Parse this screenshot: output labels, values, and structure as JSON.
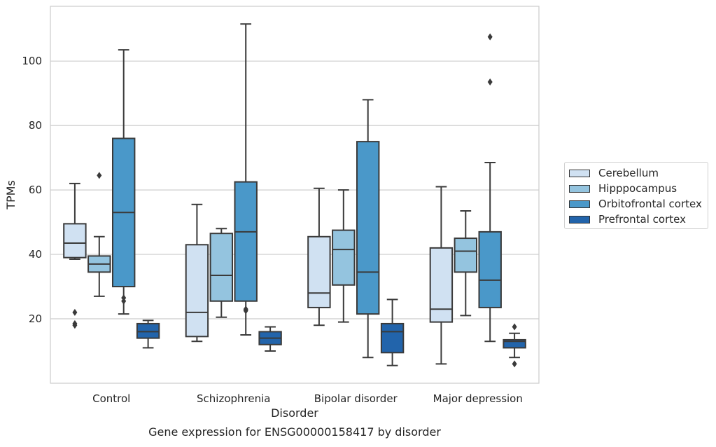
{
  "chart_data": {
    "type": "boxplot",
    "title": "Gene expression for ENSG00000158417 by disorder",
    "xlabel": "Disorder",
    "ylabel": "TPMs",
    "ylim": [
      0,
      117
    ],
    "yticks": [
      20,
      40,
      60,
      80,
      100
    ],
    "grid": "horizontal",
    "legend_position": "right",
    "categories": [
      "Control",
      "Schizophrenia",
      "Bipolar disorder",
      "Major depression"
    ],
    "series": [
      {
        "name": "Cerebellum",
        "color": "#d0e1f2",
        "boxes": [
          {
            "whisker_low": 38.5,
            "q1": 39,
            "median": 43.5,
            "q3": 49.5,
            "whisker_high": 62,
            "outliers": [
              22,
              18.5,
              18
            ]
          },
          {
            "whisker_low": 13,
            "q1": 14.5,
            "median": 22,
            "q3": 43,
            "whisker_high": 55.5,
            "outliers": []
          },
          {
            "whisker_low": 18,
            "q1": 23.5,
            "median": 28,
            "q3": 45.5,
            "whisker_high": 60.5,
            "outliers": []
          },
          {
            "whisker_low": 6,
            "q1": 19,
            "median": 23,
            "q3": 42,
            "whisker_high": 61,
            "outliers": []
          }
        ]
      },
      {
        "name": "Hipppocampus",
        "color": "#94c4df",
        "boxes": [
          {
            "whisker_low": 27,
            "q1": 34.5,
            "median": 37,
            "q3": 39.5,
            "whisker_high": 45.5,
            "outliers": [
              64.5
            ]
          },
          {
            "whisker_low": 20.5,
            "q1": 25.5,
            "median": 33.5,
            "q3": 46.5,
            "whisker_high": 48,
            "outliers": []
          },
          {
            "whisker_low": 19,
            "q1": 30.5,
            "median": 41.5,
            "q3": 47.5,
            "whisker_high": 60,
            "outliers": []
          },
          {
            "whisker_low": 21,
            "q1": 34.5,
            "median": 41,
            "q3": 45,
            "whisker_high": 53.5,
            "outliers": []
          }
        ]
      },
      {
        "name": "Orbitofrontal cortex",
        "color": "#4a98c9",
        "boxes": [
          {
            "whisker_low": 21.5,
            "q1": 30,
            "median": 53,
            "q3": 76,
            "whisker_high": 103.5,
            "outliers": [
              26.5,
              25.5
            ]
          },
          {
            "whisker_low": 15,
            "q1": 25.5,
            "median": 47,
            "q3": 62.5,
            "whisker_high": 111.5,
            "outliers": [
              23,
              22.5
            ]
          },
          {
            "whisker_low": 8,
            "q1": 21.5,
            "median": 34.5,
            "q3": 75,
            "whisker_high": 88,
            "outliers": []
          },
          {
            "whisker_low": 13,
            "q1": 23.5,
            "median": 32,
            "q3": 47,
            "whisker_high": 68.5,
            "outliers": [
              107.5,
              93.5
            ]
          }
        ]
      },
      {
        "name": "Prefrontal cortex",
        "color": "#2264ab",
        "boxes": [
          {
            "whisker_low": 11,
            "q1": 14,
            "median": 16,
            "q3": 18.5,
            "whisker_high": 19.5,
            "outliers": []
          },
          {
            "whisker_low": 10,
            "q1": 12,
            "median": 14,
            "q3": 16,
            "whisker_high": 17.5,
            "outliers": []
          },
          {
            "whisker_low": 5.5,
            "q1": 9.5,
            "median": 16,
            "q3": 18.5,
            "whisker_high": 26,
            "outliers": []
          },
          {
            "whisker_low": 8,
            "q1": 11,
            "median": 13,
            "q3": 13.5,
            "whisker_high": 15.5,
            "outliers": [
              17.5,
              6
            ]
          }
        ]
      }
    ]
  }
}
